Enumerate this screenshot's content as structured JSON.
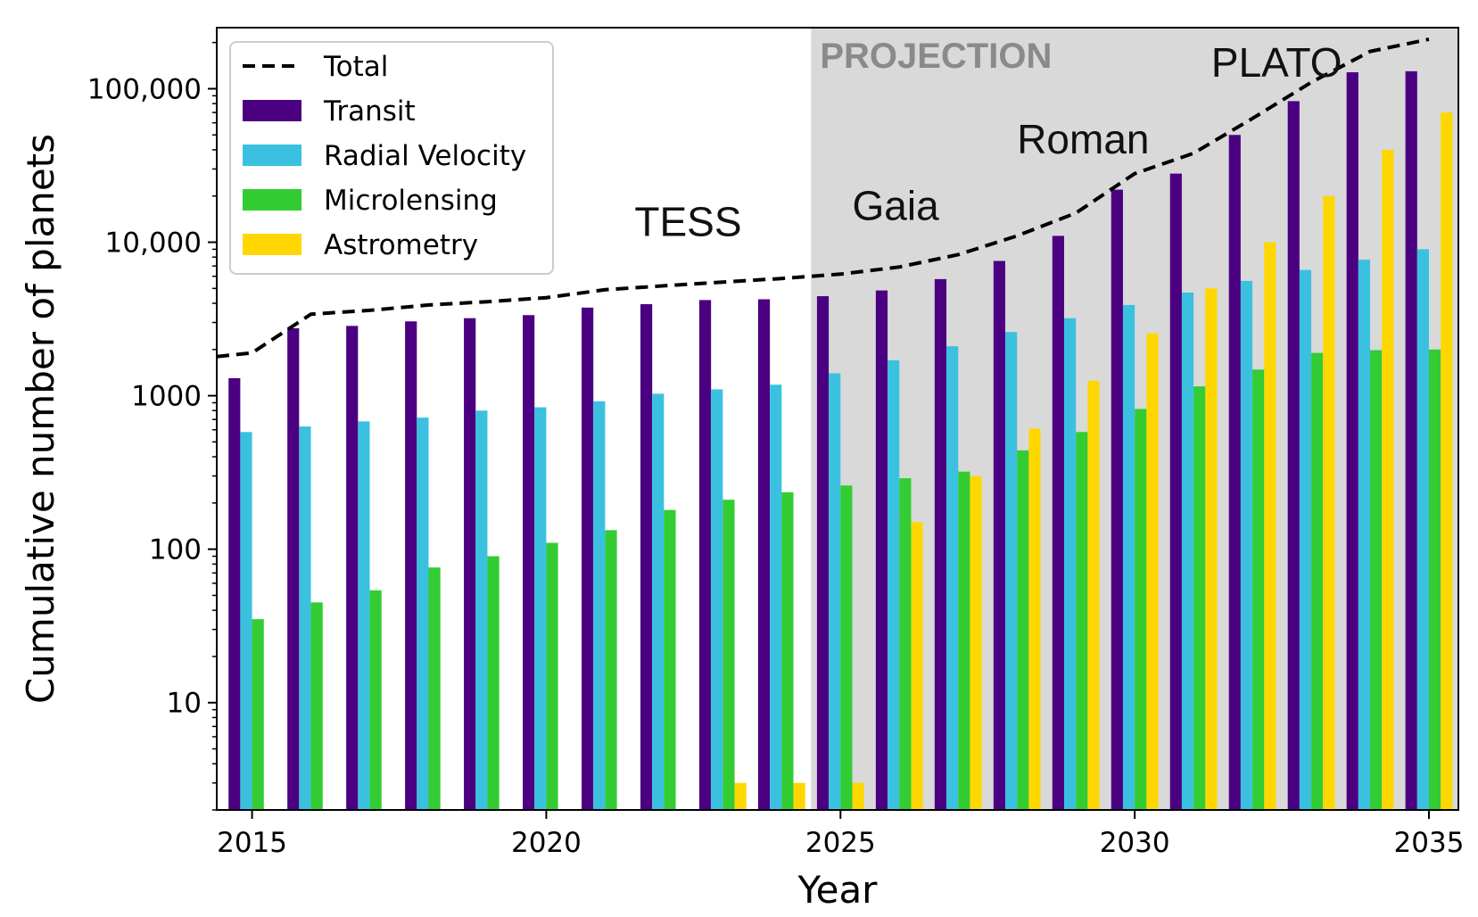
{
  "chart_data": {
    "type": "bar",
    "xlabel": "Year",
    "ylabel": "Cumulative number of planets",
    "yscale": "log",
    "ylim": [
      2,
      250000
    ],
    "xlim": [
      2014.4,
      2035.5
    ],
    "x_ticks": [
      2015,
      2020,
      2025,
      2030,
      2035
    ],
    "y_ticks": [
      10,
      100,
      1000,
      10000,
      100000
    ],
    "y_tick_labels": [
      "10",
      "100",
      "1000",
      "10,000",
      "100,000"
    ],
    "years": [
      2015,
      2016,
      2017,
      2018,
      2019,
      2020,
      2021,
      2022,
      2023,
      2024,
      2025,
      2026,
      2027,
      2028,
      2029,
      2030,
      2031,
      2032,
      2033,
      2034,
      2035
    ],
    "series": [
      {
        "name": "Transit",
        "color": "#4b0082",
        "values": [
          1300,
          2750,
          2850,
          3050,
          3200,
          3350,
          3750,
          3950,
          4200,
          4250,
          4450,
          4850,
          5750,
          7550,
          11000,
          22000,
          28000,
          50000,
          83000,
          128000,
          130000
        ]
      },
      {
        "name": "Radial Velocity",
        "color": "#3bc1e0",
        "values": [
          580,
          630,
          680,
          720,
          800,
          840,
          920,
          1030,
          1100,
          1180,
          1400,
          1700,
          2100,
          2600,
          3200,
          3900,
          4700,
          5600,
          6600,
          7700,
          9000
        ]
      },
      {
        "name": "Microlensing",
        "color": "#33cc33",
        "values": [
          35,
          45,
          54,
          76,
          90,
          110,
          133,
          180,
          210,
          235,
          260,
          290,
          320,
          440,
          580,
          820,
          1150,
          1480,
          1900,
          1980,
          2000
        ]
      },
      {
        "name": "Astrometry",
        "color": "#ffd700",
        "values": [
          null,
          null,
          null,
          null,
          null,
          null,
          null,
          null,
          3,
          3,
          3,
          150,
          300,
          610,
          1250,
          2550,
          5000,
          10000,
          20000,
          40000,
          70000
        ]
      }
    ],
    "total": {
      "name": "Total",
      "color": "#000000",
      "style": "dashed",
      "x": [
        2014.4,
        2015,
        2016,
        2017,
        2018,
        2019,
        2020,
        2021,
        2022,
        2023,
        2024,
        2025,
        2026,
        2027,
        2028,
        2029,
        2030,
        2031,
        2032,
        2033,
        2034,
        2035
      ],
      "y": [
        1800,
        1900,
        3400,
        3600,
        3900,
        4100,
        4350,
        4900,
        5200,
        5500,
        5800,
        6200,
        6900,
        8300,
        11000,
        15500,
        28000,
        38000,
        64000,
        110000,
        175000,
        210000
      ]
    },
    "legend": {
      "placement": "upper-left",
      "entries": [
        "Total",
        "Transit",
        "Radial Velocity",
        "Microlensing",
        "Astrometry"
      ]
    },
    "projection": {
      "label": "PROJECTION",
      "start_year": 2024.5,
      "color": "#d9d9d9"
    },
    "annotations": [
      {
        "text": "TESS",
        "x": 2021.5,
        "y": 11000
      },
      {
        "text": "Gaia",
        "x": 2025.2,
        "y": 14000
      },
      {
        "text": "Roman",
        "x": 2028.0,
        "y": 38000
      },
      {
        "text": "PLATO",
        "x": 2031.3,
        "y": 120000
      }
    ]
  }
}
